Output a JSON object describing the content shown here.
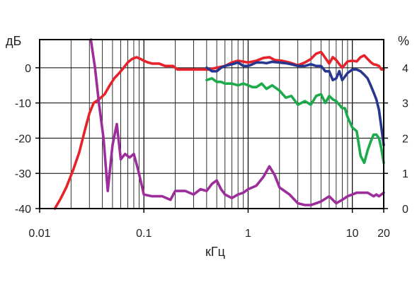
{
  "chart_data": {
    "type": "line",
    "xlabel": "кГц",
    "ylabel_left": "дБ",
    "ylabel_right": "%",
    "x_scale": "log",
    "xlim": [
      0.01,
      20
    ],
    "ylim_left": [
      -40,
      8
    ],
    "ylim_right": [
      0,
      4.8
    ],
    "grid": true,
    "x_ticks": [
      {
        "value": 0.01,
        "label": "0.01"
      },
      {
        "value": 0.1,
        "label": "0.1"
      },
      {
        "value": 1,
        "label": "1"
      },
      {
        "value": 10,
        "label": "10"
      },
      {
        "value": 20,
        "label": "20"
      }
    ],
    "y_ticks_left": [
      {
        "value": 0,
        "label": "0"
      },
      {
        "value": -10,
        "label": "-10"
      },
      {
        "value": -20,
        "label": "-20"
      },
      {
        "value": -30,
        "label": "-30"
      },
      {
        "value": -40,
        "label": "-40"
      }
    ],
    "y_ticks_right": [
      {
        "value": 4,
        "label": "4"
      },
      {
        "value": 3,
        "label": "3"
      },
      {
        "value": 2,
        "label": "2"
      },
      {
        "value": 1,
        "label": "1"
      },
      {
        "value": 0,
        "label": "0"
      }
    ],
    "series": [
      {
        "color": "#e8222a",
        "axis": "left",
        "x": [
          0.014,
          0.016,
          0.018,
          0.021,
          0.024,
          0.027,
          0.03,
          0.033,
          0.037,
          0.042,
          0.047,
          0.052,
          0.058,
          0.064,
          0.07,
          0.077,
          0.085,
          0.093,
          0.1,
          0.11,
          0.12,
          0.14,
          0.16,
          0.19,
          0.21,
          0.25,
          0.3,
          0.36,
          0.42,
          0.5,
          0.6,
          0.7,
          0.8,
          1.0,
          1.2,
          1.4,
          1.6,
          1.8,
          2.1,
          2.5,
          3.0,
          3.5,
          4.0,
          4.5,
          5.0,
          5.5,
          6.0,
          6.5,
          7.0,
          7.5,
          8.0,
          9.0,
          10.0,
          11.0,
          12.0,
          13.0,
          14.0,
          15.0,
          16.0,
          17.0,
          18.0,
          19.0,
          20.0
        ],
        "y": [
          -40,
          -37,
          -34,
          -29,
          -24,
          -18,
          -13,
          -10,
          -9,
          -7.5,
          -5,
          -3,
          -1.5,
          0,
          1.5,
          2.5,
          3,
          2.5,
          2,
          1.5,
          1.2,
          1.2,
          0.5,
          0.5,
          -0.5,
          -0.5,
          -0.5,
          -0.5,
          -0.5,
          0,
          0.5,
          1.5,
          2,
          1.5,
          2,
          2.8,
          3,
          2.2,
          2,
          1.5,
          0.7,
          1.5,
          2.5,
          4,
          4.5,
          2.8,
          1.2,
          3,
          2.2,
          1,
          0,
          1.8,
          2,
          1.8,
          3,
          3.5,
          2.5,
          1.6,
          1,
          0.8,
          0.5,
          -0.5,
          -0.5
        ]
      },
      {
        "color": "#27368f",
        "axis": "left",
        "x": [
          0.4,
          0.45,
          0.5,
          0.55,
          0.6,
          0.7,
          0.8,
          0.9,
          1.0,
          1.1,
          1.2,
          1.35,
          1.5,
          1.7,
          2.0,
          2.3,
          2.6,
          3.0,
          3.5,
          4.0,
          4.5,
          5.0,
          5.5,
          6.0,
          6.5,
          7.0,
          7.5,
          8.0,
          9.0,
          10.0,
          11.0,
          12.0,
          13.0,
          14.0,
          15.0,
          16.0,
          17.0,
          18.0,
          19.0,
          20.0
        ],
        "y": [
          0,
          -1,
          -1,
          0,
          0.5,
          1,
          1.5,
          0.5,
          0.5,
          1,
          1.5,
          1.5,
          1.3,
          1.7,
          1.5,
          1.3,
          1,
          0.5,
          0.5,
          1,
          0.5,
          0.5,
          -1,
          -1,
          -3.5,
          -3,
          -1,
          -3.5,
          -1.5,
          -0.5,
          -0.5,
          -1,
          -2,
          -3,
          -5,
          -7,
          -9,
          -12,
          -17,
          -22
        ]
      },
      {
        "color": "#1daa4b",
        "axis": "left",
        "x": [
          0.4,
          0.45,
          0.5,
          0.55,
          0.6,
          0.7,
          0.8,
          0.9,
          1.0,
          1.1,
          1.2,
          1.35,
          1.5,
          1.7,
          2.0,
          2.3,
          2.6,
          3.0,
          3.5,
          4.0,
          4.5,
          5.0,
          5.5,
          6.0,
          6.5,
          7.0,
          7.5,
          8.0,
          8.5,
          9.0,
          10.0,
          11.0,
          12.0,
          13.0,
          14.0,
          15.0,
          16.0,
          17.0,
          18.0,
          19.0,
          20.0
        ],
        "y": [
          -3.5,
          -3,
          -4,
          -4,
          -4.5,
          -4.5,
          -5,
          -4.5,
          -5,
          -5.5,
          -5.5,
          -4.5,
          -6,
          -5,
          -6.5,
          -8.5,
          -8,
          -10.5,
          -9.5,
          -10.5,
          -8,
          -7.5,
          -10,
          -8,
          -9,
          -9.5,
          -10.5,
          -11.5,
          -11.5,
          -14,
          -17,
          -18,
          -25,
          -27,
          -23.5,
          -21,
          -19,
          -19,
          -20,
          -23,
          -27
        ]
      },
      {
        "color": "#9c2d9b",
        "axis": "right",
        "x": [
          0.031,
          0.034,
          0.037,
          0.041,
          0.045,
          0.05,
          0.055,
          0.06,
          0.066,
          0.073,
          0.08,
          0.088,
          0.1,
          0.12,
          0.15,
          0.18,
          0.2,
          0.22,
          0.25,
          0.3,
          0.35,
          0.4,
          0.45,
          0.5,
          0.55,
          0.6,
          0.7,
          0.8,
          0.9,
          1.0,
          1.2,
          1.4,
          1.6,
          1.8,
          2.0,
          2.5,
          3.0,
          3.5,
          4.0,
          4.5,
          5.0,
          6.0,
          7.0,
          8.0,
          9.0,
          10.0,
          11.0,
          12.0,
          13.0,
          14.0,
          15.0,
          16.0,
          17.0,
          18.0,
          19.0,
          20.0
        ],
        "y": [
          4.8,
          4,
          3,
          2,
          0.5,
          1.8,
          2.4,
          1.4,
          1.55,
          1.45,
          1.55,
          1.1,
          0.4,
          0.35,
          0.35,
          0.25,
          0.5,
          0.5,
          0.5,
          0.4,
          0.55,
          0.5,
          0.7,
          0.8,
          0.55,
          0.4,
          0.3,
          0.4,
          0.45,
          0.55,
          0.65,
          0.9,
          1.2,
          0.95,
          0.6,
          0.4,
          0.15,
          0.1,
          0.1,
          0.15,
          0.2,
          0.35,
          0.15,
          0.25,
          0.35,
          0.4,
          0.45,
          0.45,
          0.45,
          0.45,
          0.4,
          0.35,
          0.4,
          0.35,
          0.4,
          0.45
        ]
      }
    ]
  }
}
